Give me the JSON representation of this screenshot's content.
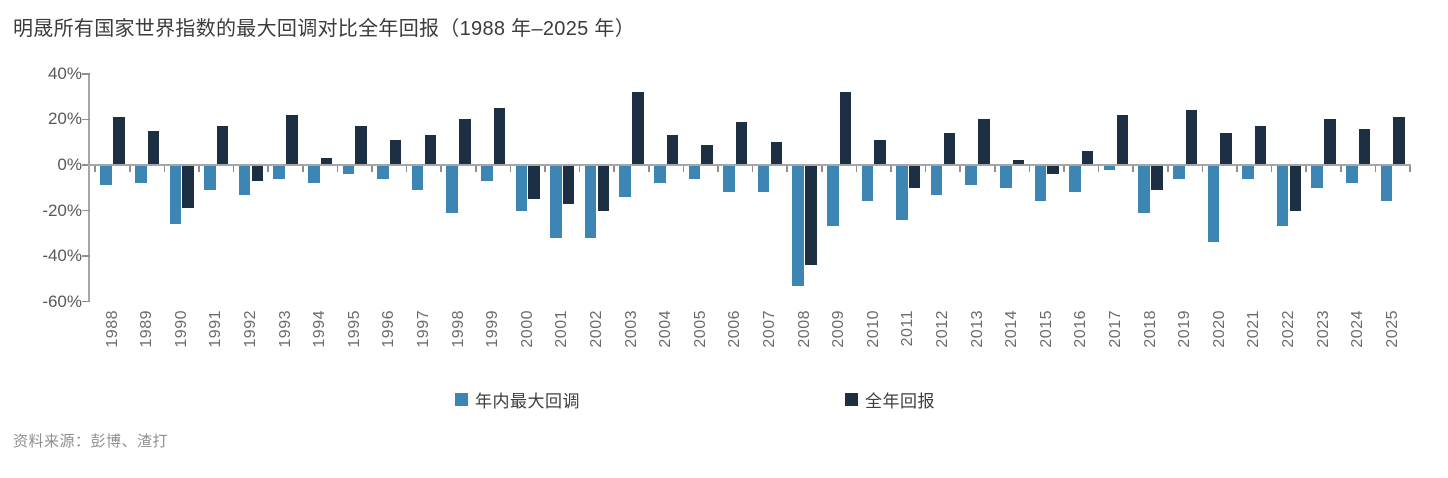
{
  "title": "明晟所有国家世界指数的最大回调对比全年回报（1988 年–2025 年）",
  "source": "资料来源：彭博、渣打",
  "legend": {
    "items": [
      {
        "label": "年内最大回调",
        "color": "#3d86b4"
      },
      {
        "label": "全年回报",
        "color": "#1d2f42"
      }
    ]
  },
  "axis_colors": {
    "line": "#a6a6a6",
    "tick": "#8f8f8f",
    "ylabel": "#595959",
    "xlabel": "#6b6b6b"
  },
  "chart_data": {
    "type": "bar",
    "title": "明晟所有国家世界指数的最大回调对比全年回报（1988 年–2025 年）",
    "xlabel": "",
    "ylabel": "",
    "ylim": [
      -60,
      40
    ],
    "yticks": [
      40,
      20,
      0,
      -20,
      -40,
      -60
    ],
    "ytick_labels": [
      "40%",
      "20%",
      "0%",
      "-20%",
      "-40%",
      "-60%"
    ],
    "grid": false,
    "legend_position": "bottom",
    "categories": [
      "1988",
      "1989",
      "1990",
      "1991",
      "1992",
      "1993",
      "1994",
      "1995",
      "1996",
      "1997",
      "1998",
      "1999",
      "2000",
      "2001",
      "2002",
      "2003",
      "2004",
      "2005",
      "2006",
      "2007",
      "2008",
      "2009",
      "2010",
      "2011",
      "2012",
      "2013",
      "2014",
      "2015",
      "2016",
      "2017",
      "2018",
      "2019",
      "2020",
      "2021",
      "2022",
      "2023",
      "2024",
      "2025"
    ],
    "series": [
      {
        "name": "年内最大回调",
        "color": "#3d86b4",
        "values": [
          -9,
          -8,
          -26,
          -11,
          -13,
          -6,
          -8,
          -4,
          -6,
          -11,
          -21,
          -7,
          -20,
          -32,
          -32,
          -14,
          -8,
          -6,
          -12,
          -12,
          -53,
          -27,
          -16,
          -24,
          -13,
          -9,
          -10,
          -16,
          -12,
          -2,
          -21,
          -6,
          -34,
          -6,
          -27,
          -10,
          -8,
          -16
        ]
      },
      {
        "name": "全年回报",
        "color": "#1d2f42",
        "values": [
          21,
          15,
          -19,
          17,
          -7,
          22,
          3,
          17,
          11,
          13,
          20,
          25,
          -15,
          -17,
          -20,
          32,
          13,
          9,
          19,
          10,
          -44,
          32,
          11,
          -10,
          14,
          20,
          2,
          -4,
          6,
          22,
          -11,
          24,
          14,
          17,
          -20,
          20,
          16,
          21
        ]
      }
    ]
  }
}
